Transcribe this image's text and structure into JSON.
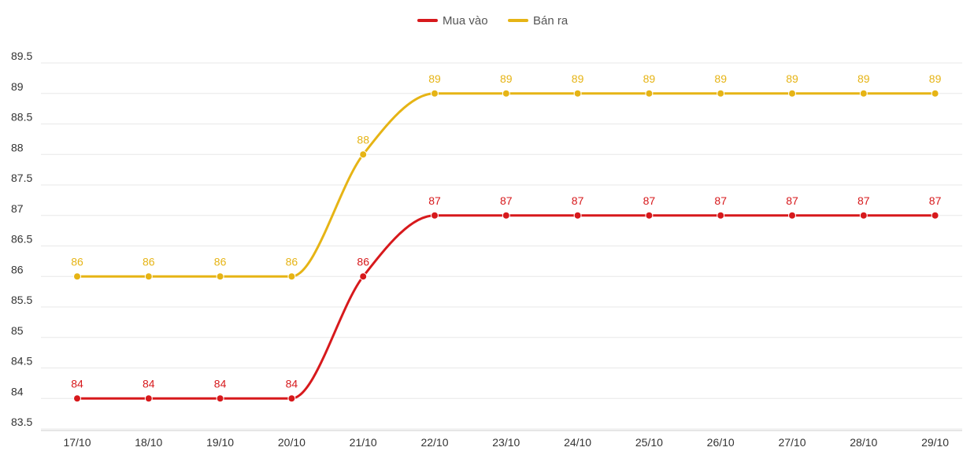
{
  "chart_data": {
    "type": "line",
    "categories": [
      "17/10",
      "18/10",
      "19/10",
      "20/10",
      "21/10",
      "22/10",
      "23/10",
      "24/10",
      "25/10",
      "26/10",
      "27/10",
      "28/10",
      "29/10"
    ],
    "series": [
      {
        "name": "Mua vào",
        "color": "#d7191c",
        "values": [
          84,
          84,
          84,
          84,
          86,
          87,
          87,
          87,
          87,
          87,
          87,
          87,
          87
        ]
      },
      {
        "name": "Bán ra",
        "color": "#e6b415",
        "values": [
          86,
          86,
          86,
          86,
          88,
          89,
          89,
          89,
          89,
          89,
          89,
          89,
          89
        ]
      }
    ],
    "yticks": [
      "83.5",
      "84",
      "84.5",
      "85",
      "85.5",
      "86",
      "86.5",
      "87",
      "87.5",
      "88",
      "88.5",
      "89",
      "89.5"
    ],
    "ylim": [
      83.5,
      89.5
    ],
    "legend_position": "top-center",
    "grid": true
  }
}
